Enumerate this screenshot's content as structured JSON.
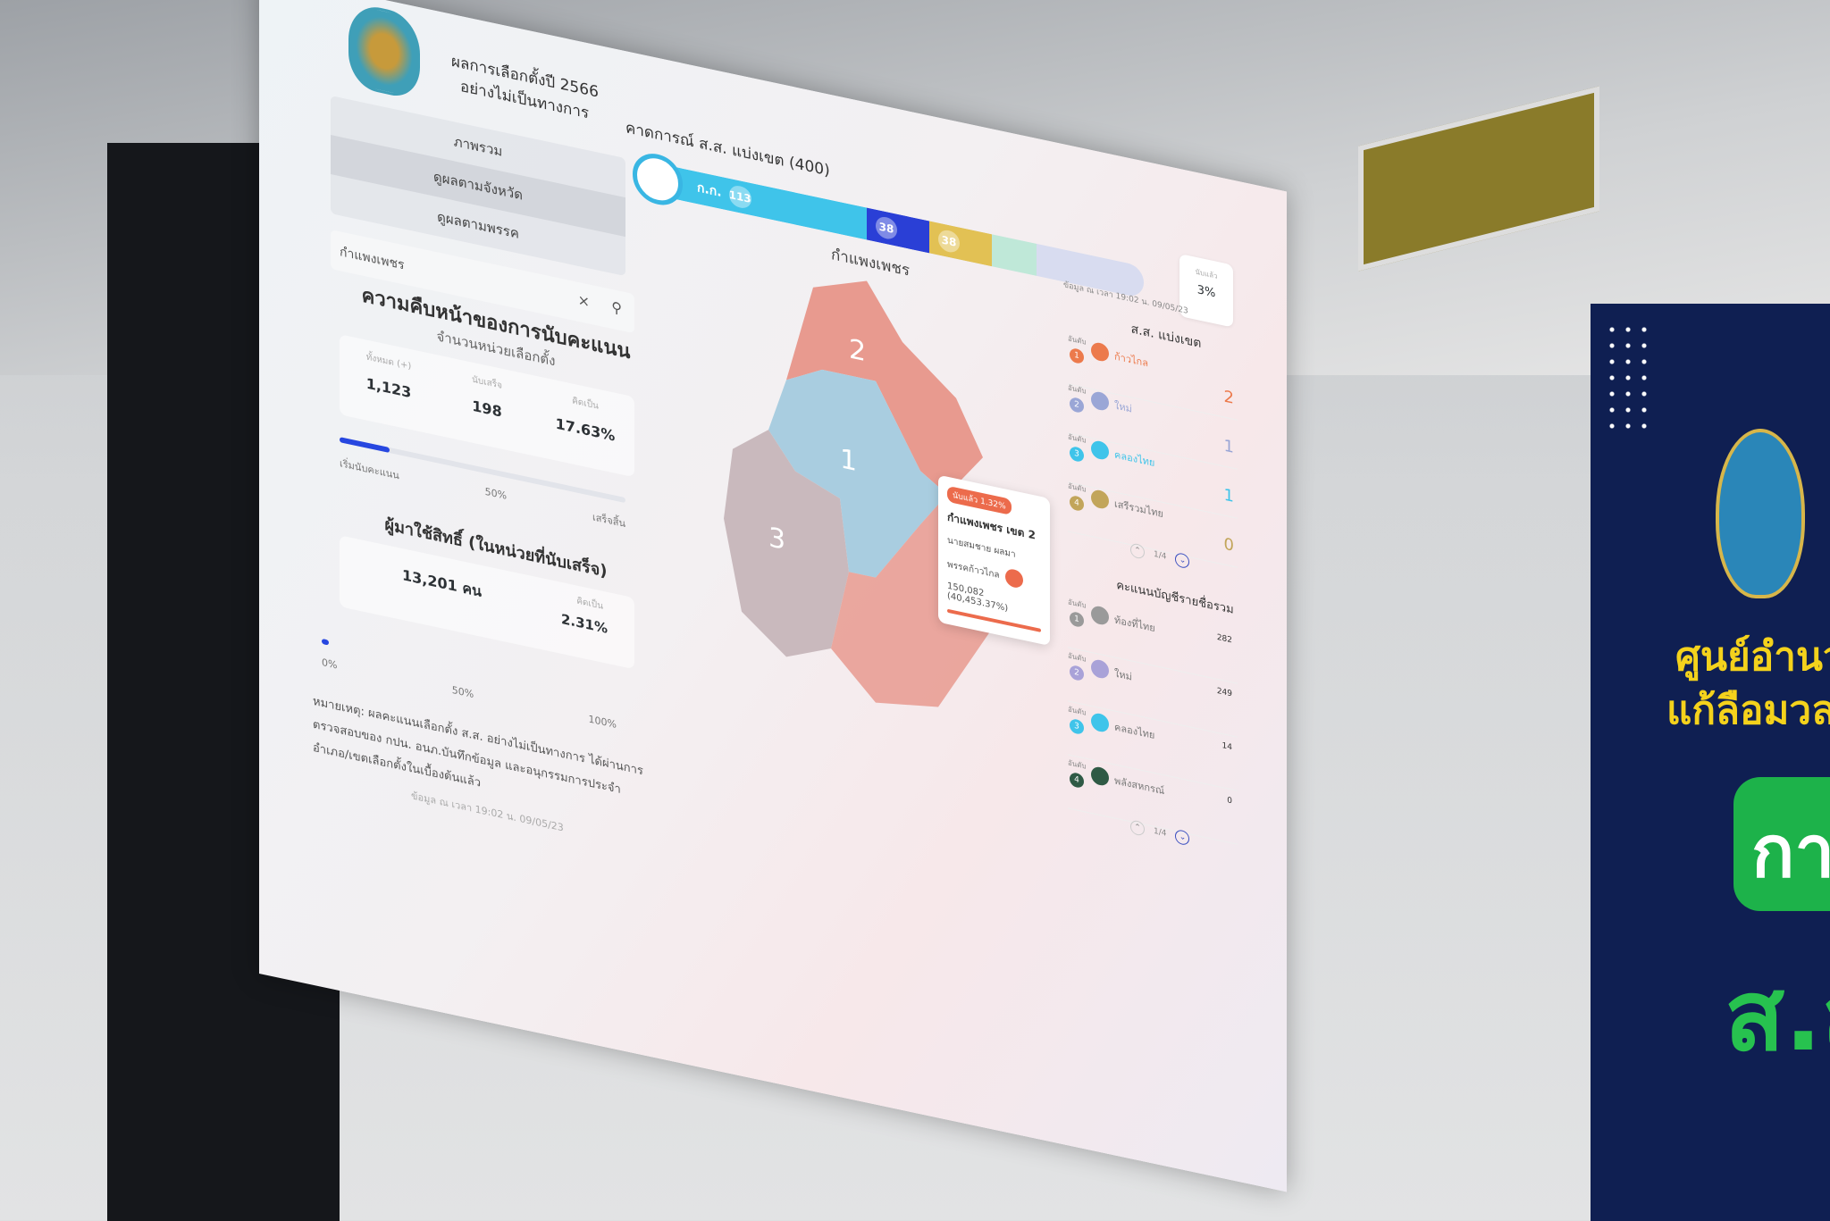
{
  "header": {
    "title_line1": "ผลการเลือกตั้งปี 2566",
    "title_line2": "อย่างไม่เป็นทางการ",
    "forecast_title": "คาดการณ์ ส.ส. แบ่งเขต (400)"
  },
  "party_bar": {
    "segments": [
      {
        "label": "ก.ก.",
        "value": "113",
        "color": "#3fc4ea"
      },
      {
        "label": "",
        "value": "38",
        "color": "#2a3fd6"
      },
      {
        "label": "",
        "value": "38",
        "color": "#e2c154"
      },
      {
        "label": "",
        "value": "",
        "color": "#bfe8d8"
      },
      {
        "label": "",
        "value": "",
        "color": "#d8dcf0"
      }
    ]
  },
  "nav": {
    "items": [
      "ภาพรวม",
      "ดูผลตามจังหวัด",
      "ดูผลตามพรรค"
    ]
  },
  "search": {
    "value": "กำแพงเพชร",
    "clear": "×",
    "icon": "search-icon"
  },
  "progress": {
    "title": "ความคืบหน้าของการนับคะแนน",
    "subtitle": "จำนวนหน่วยเลือกตั้ง",
    "stats": [
      {
        "label": "ทั้งหมด (+)",
        "value": "1,123"
      },
      {
        "label": "นับเสร็จ",
        "value": "198"
      },
      {
        "label": "คิดเป็น",
        "value": "17.63%"
      }
    ],
    "percent": 17.63,
    "ticks": [
      "เริ่มนับคะแนน",
      "50%",
      "เสร็จสิ้น"
    ]
  },
  "turnout": {
    "title": "ผู้มาใช้สิทธิ์ (ในหน่วยที่นับเสร็จ)",
    "value": "13,201 คน",
    "pct_label": "คิดเป็น",
    "pct": "2.31%",
    "percent": 2.31,
    "ticks": [
      "0%",
      "50%",
      "100%"
    ]
  },
  "note": "หมายเหตุ: ผลคะแนนเลือกตั้ง ส.ส. อย่างไม่เป็นทางการ ได้ผ่านการตรวจสอบของ กปน. อนภ.บันทึกข้อมูล และอนุกรรมการประจำอำเภอ/เขตเลือกตั้งในเบื้องต้นแล้ว",
  "timestamp": "ข้อมูล ณ เวลา 19:02 น. 09/05/23",
  "map": {
    "title": "กำแพงเพชร",
    "districts": [
      "1",
      "2",
      "3"
    ],
    "colors": {
      "move_forward": "#e89a8f",
      "light_blue": "#a9cde0",
      "grey": "#c9b9bd"
    }
  },
  "tooltip": {
    "badge": "นับแล้ว 1.32%",
    "district": "กำแพงเพชร เขต 2",
    "candidate": "นายสมชาย ผลมา",
    "party": "พรรคก้าวไกล",
    "votes": "150,082 (40,453.37%)"
  },
  "counted_box": {
    "label": "นับแล้ว",
    "value": "3%"
  },
  "constituency": {
    "title": "ส.ส. แบ่งเขต",
    "rank_label": "อันดับ",
    "rows": [
      {
        "rank": "1",
        "party": "ก้าวไกล",
        "seats": "2",
        "color": "#ec7a4c"
      },
      {
        "rank": "2",
        "party": "ใหม่",
        "seats": "1",
        "color": "#9aa6d6"
      },
      {
        "rank": "3",
        "party": "คลองไทย",
        "seats": "1",
        "color": "#3fc4ea"
      },
      {
        "rank": "4",
        "party": "เสรีรวมไทย",
        "seats": "0",
        "color": "#c2a55a"
      }
    ],
    "pager": "1/4"
  },
  "party_list": {
    "title": "คะแนนบัญชีรายชื่อรวม",
    "rank_label": "อันดับ",
    "rows": [
      {
        "rank": "1",
        "party": "ท้องที่ไทย",
        "votes": "282",
        "color": "#9a9a9a"
      },
      {
        "rank": "2",
        "party": "ใหม่",
        "votes": "249",
        "color": "#a9a2d8"
      },
      {
        "rank": "3",
        "party": "คลองไทย",
        "votes": "14",
        "color": "#3fc4ea"
      },
      {
        "rank": "4",
        "party": "พลังสหกรณ์",
        "votes": "0",
        "color": "#2f5a45"
      }
    ],
    "pager": "1/4"
  },
  "banner": {
    "line1": "ศูนย์อำนวย",
    "line2": "แก้ลือมวลชน",
    "pill": "การ",
    "ss": "ส.ส"
  }
}
